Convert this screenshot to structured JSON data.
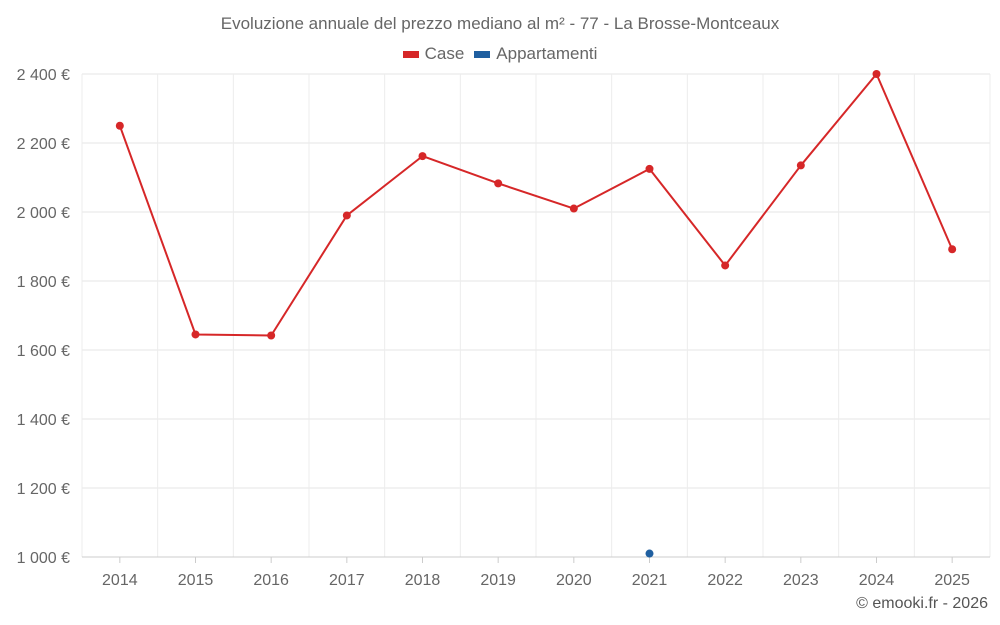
{
  "chart_data": {
    "type": "line",
    "title": "Evoluzione annuale del prezzo mediano al m² - 77 - La Brosse-Montceaux",
    "xlabel": "",
    "ylabel": "",
    "categories": [
      "2014",
      "2015",
      "2016",
      "2017",
      "2018",
      "2019",
      "2020",
      "2021",
      "2022",
      "2023",
      "2024",
      "2025"
    ],
    "ylim": [
      1000,
      2400
    ],
    "yticks": [
      1000,
      1200,
      1400,
      1600,
      1800,
      2000,
      2200,
      2400
    ],
    "ytick_labels": [
      "1 000 €",
      "1 200 €",
      "1 400 €",
      "1 600 €",
      "1 800 €",
      "2 000 €",
      "2 200 €",
      "2 400 €"
    ],
    "grid": true,
    "legend_position": "top-center",
    "series": [
      {
        "name": "Case",
        "color": "#d62728",
        "values": [
          2250,
          1645,
          1642,
          1990,
          2162,
          2083,
          2010,
          2125,
          1845,
          2135,
          2400,
          1892
        ]
      },
      {
        "name": "Appartamenti",
        "color": "#1f5fa0",
        "values": [
          null,
          null,
          null,
          null,
          null,
          null,
          null,
          1010,
          null,
          null,
          null,
          null
        ]
      }
    ]
  },
  "credit": "© emooki.fr - 2026"
}
